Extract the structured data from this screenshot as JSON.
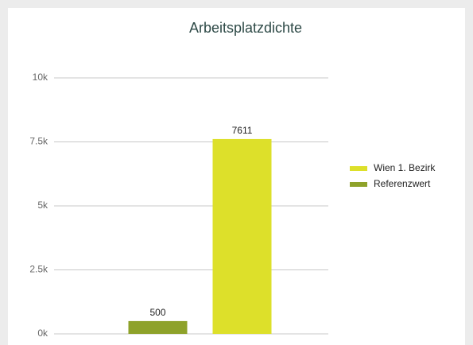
{
  "chart_data": {
    "type": "bar",
    "title": "Arbeitsplatzdichte",
    "categories": [
      null
    ],
    "series": [
      {
        "name": "Wien 1. Bezirk",
        "color": "#dde02a",
        "values": [
          7611
        ]
      },
      {
        "name": "Referenzwert",
        "color": "#8ea22a",
        "values": [
          500
        ]
      }
    ],
    "ylim": [
      0,
      10000
    ],
    "yticks": [
      {
        "value": 0,
        "label": "0k"
      },
      {
        "value": 2500,
        "label": "2.5k"
      },
      {
        "value": 5000,
        "label": "5k"
      },
      {
        "value": 7500,
        "label": "7.5k"
      },
      {
        "value": 10000,
        "label": "10k"
      }
    ],
    "grid": true,
    "legend": "right"
  }
}
